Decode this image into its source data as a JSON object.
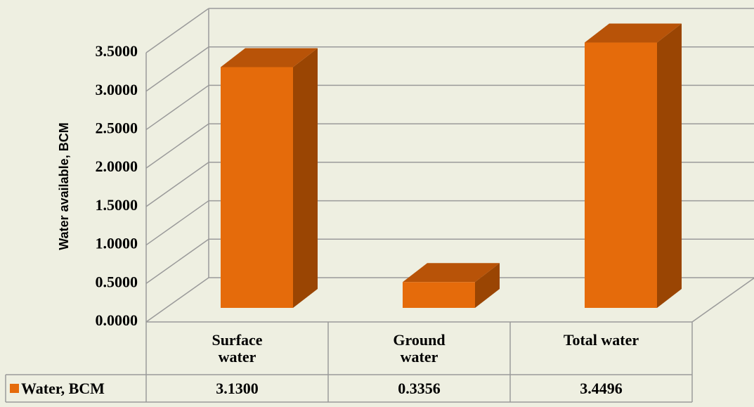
{
  "chart_data": {
    "type": "bar3d",
    "y_label": "Water  available, BCM",
    "categories": [
      "Surface water",
      "Ground water",
      "Total water"
    ],
    "series": [
      {
        "name": "Water, BCM",
        "color": "#e56b0b",
        "values": [
          3.13,
          0.3356,
          3.4496
        ],
        "value_labels": [
          "3.1300",
          "0.3356",
          "3.4496"
        ]
      }
    ],
    "ylim": [
      0,
      3.5
    ],
    "yticks": [
      {
        "value": 0,
        "label": "0.0000"
      },
      {
        "value": 0.5,
        "label": "0.5000"
      },
      {
        "value": 1,
        "label": "1.0000"
      },
      {
        "value": 1.5,
        "label": "1.5000"
      },
      {
        "value": 2,
        "label": "2.0000"
      },
      {
        "value": 2.5,
        "label": "2.5000"
      },
      {
        "value": 3,
        "label": "3.0000"
      },
      {
        "value": 3.5,
        "label": "3.5000"
      }
    ],
    "grid": true,
    "data_table": true
  }
}
